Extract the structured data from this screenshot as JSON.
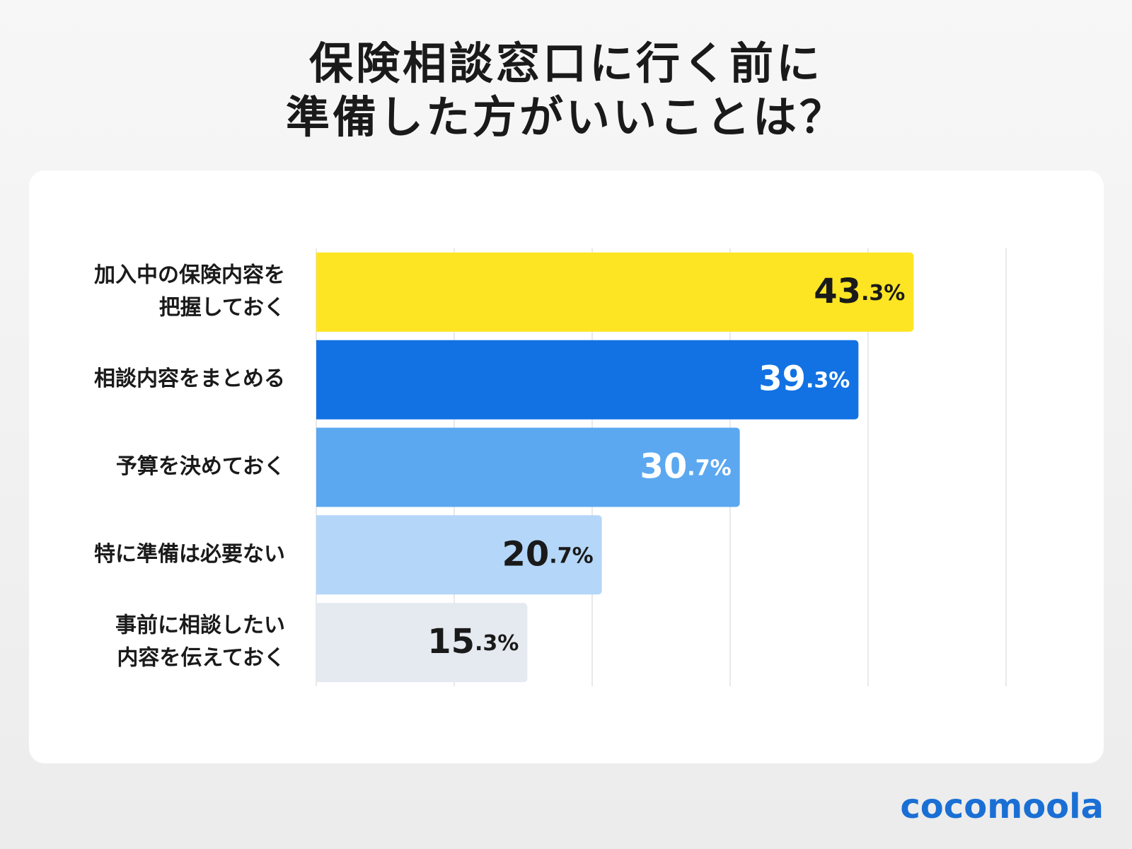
{
  "title": [
    "保険相談窓口に行く前に",
    "準備した方がいいことは？"
  ],
  "brand": "cocomoola",
  "chart_data": {
    "type": "hbar",
    "categories": [
      [
        "加入中の保険内容を",
        "把握しておく"
      ],
      [
        "相談内容をまとめる"
      ],
      [
        "予算を決めておく"
      ],
      [
        "特に準備は必要ない"
      ],
      [
        "事前に相談したい",
        "内容を伝えておく"
      ]
    ],
    "values": [
      43.3,
      39.3,
      30.7,
      20.7,
      15.3
    ],
    "value_labels": [
      "43.3%",
      "39.3%",
      "30.7%",
      "20.7%",
      "15.3%"
    ],
    "colors": [
      "#fde523",
      "#1272e3",
      "#5ba8f0",
      "#b4d6f8",
      "#e5e9f0"
    ],
    "xlim": [
      0,
      50
    ],
    "xticks": [
      0,
      10,
      20,
      30,
      40,
      50
    ],
    "grid": true
  }
}
